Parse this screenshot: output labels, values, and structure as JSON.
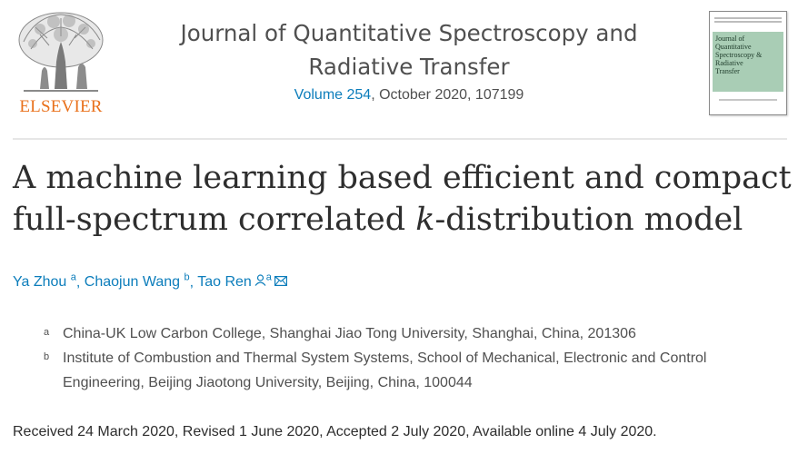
{
  "header": {
    "publisher": "ELSEVIER",
    "journal_title_line1": "Journal of Quantitative Spectroscopy and",
    "journal_title_line2": "Radiative Transfer",
    "volume_link": "Volume 254",
    "issue_rest": ", October 2020, 107199",
    "cover_text": [
      "Journal of",
      "Quantitative",
      "Spectroscopy &",
      "Radiative",
      "Transfer"
    ]
  },
  "article": {
    "title_part1": "A machine learning based efficient and compact",
    "title_part2": "full-spectrum correlated ",
    "title_k": "k",
    "title_part3": "-distribution model"
  },
  "authors": [
    {
      "name": "Ya Zhou",
      "sup": "a"
    },
    {
      "name": "Chaojun Wang",
      "sup": "b"
    },
    {
      "name": "Tao Ren",
      "sup": "a"
    }
  ],
  "affiliations": [
    {
      "label": "a",
      "line1": "China-UK Low Carbon College, Shanghai Jiao Tong University, Shanghai, China, 201306",
      "line2": ""
    },
    {
      "label": "b",
      "line1": "Institute of Combustion and Thermal System Systems, School of Mechanical, Electronic and Control",
      "line2": "Engineering, Beijing Jiaotong University, Beijing, China, 100044"
    }
  ],
  "dates": "Received 24 March 2020, Revised 1 June 2020, Accepted 2 July 2020, Available online 4 July 2020.",
  "colors": {
    "link": "#0c7dbb",
    "publisher": "#e9711c",
    "text": "#2e2e2e"
  }
}
